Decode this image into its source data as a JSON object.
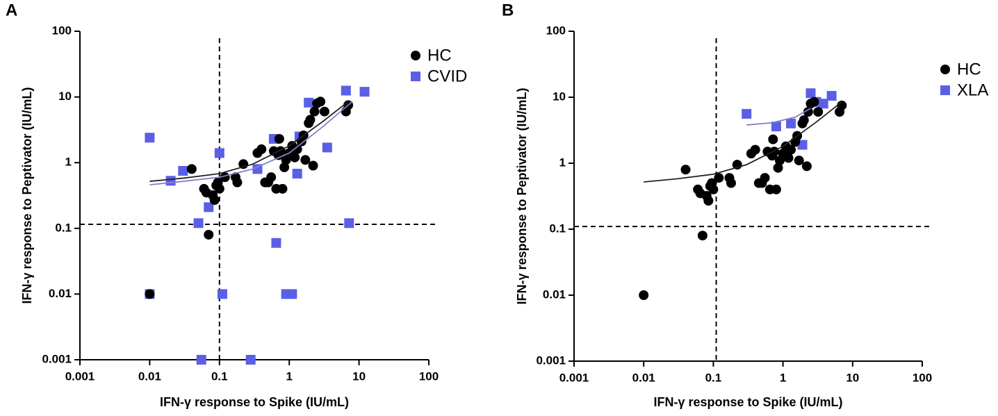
{
  "chart_data": [
    {
      "type": "scatter",
      "panel_label": "A",
      "x_label": "IFN-γ response to Spike (IU/mL)",
      "y_label": "IFN-γ response to Peptivator (IU/mL)",
      "log_x": true,
      "log_y": true,
      "xlim": [
        0.001,
        100
      ],
      "ylim": [
        0.001,
        100
      ],
      "xticks": [
        0.001,
        0.01,
        0.1,
        1,
        10,
        100
      ],
      "yticks": [
        0.001,
        0.01,
        0.1,
        1,
        10,
        100
      ],
      "ref_lines": {
        "x": 0.1,
        "y": 0.115
      },
      "legend": "upper right",
      "series": [
        {
          "name": "HC",
          "color": "#000000",
          "marker": "circle",
          "x": [
            0.01,
            0.04,
            0.06,
            0.065,
            0.07,
            0.08,
            0.085,
            0.09,
            0.095,
            0.1,
            0.12,
            0.17,
            0.18,
            0.22,
            0.35,
            0.4,
            0.45,
            0.5,
            0.55,
            0.6,
            0.65,
            0.7,
            0.72,
            0.75,
            0.8,
            0.85,
            0.9,
            1.0,
            1.1,
            1.2,
            1.3,
            1.5,
            1.6,
            1.7,
            1.9,
            2.0,
            2.2,
            2.3,
            2.5,
            2.8,
            3.2,
            6.5,
            7.0
          ],
          "values": [
            0.01,
            0.8,
            0.4,
            0.35,
            0.08,
            0.32,
            0.27,
            0.45,
            0.5,
            0.4,
            0.6,
            0.6,
            0.5,
            0.95,
            1.4,
            1.6,
            0.5,
            0.5,
            0.6,
            1.5,
            0.4,
            1.3,
            2.3,
            1.5,
            0.4,
            0.85,
            1.1,
            1.4,
            1.8,
            1.2,
            1.6,
            2.1,
            2.6,
            1.1,
            4.0,
            4.5,
            0.9,
            6.0,
            8.0,
            8.5,
            6.0,
            6.0,
            7.5
          ]
        },
        {
          "name": "CVID",
          "color": "#5b5fe6",
          "marker": "square",
          "x": [
            0.01,
            0.01,
            0.02,
            0.03,
            0.05,
            0.055,
            0.07,
            0.1,
            0.11,
            0.28,
            0.35,
            0.6,
            0.65,
            0.9,
            1.1,
            1.3,
            1.4,
            1.9,
            3.5,
            6.5,
            7.2,
            12
          ],
          "values": [
            2.4,
            0.01,
            0.53,
            0.75,
            0.12,
            0.001,
            0.21,
            1.4,
            0.01,
            0.001,
            0.8,
            2.3,
            0.06,
            0.01,
            0.01,
            0.68,
            2.5,
            8.2,
            1.7,
            12.5,
            0.12,
            12
          ]
        }
      ],
      "fits": [
        {
          "color": "#222222",
          "x": [
            0.01,
            0.03,
            0.1,
            0.3,
            1,
            3,
            7
          ],
          "values": [
            0.52,
            0.58,
            0.68,
            0.95,
            1.8,
            4.2,
            8.5
          ]
        },
        {
          "color": "#8080cc",
          "x": [
            0.01,
            0.03,
            0.1,
            0.3,
            1,
            3,
            8
          ],
          "values": [
            0.46,
            0.52,
            0.6,
            0.8,
            1.4,
            3.5,
            8.5
          ]
        }
      ]
    },
    {
      "type": "scatter",
      "panel_label": "B",
      "x_label": "IFN-γ response to Spike (IU/mL)",
      "y_label": "IFN-γ response to Peptivator (IU/mL)",
      "log_x": true,
      "log_y": true,
      "xlim": [
        0.001,
        100
      ],
      "ylim": [
        0.001,
        100
      ],
      "xticks": [
        0.001,
        0.01,
        0.1,
        1,
        10,
        100
      ],
      "yticks": [
        0.001,
        0.01,
        0.1,
        1,
        10,
        100
      ],
      "ref_lines": {
        "x": 0.11,
        "y": 0.11
      },
      "legend": "upper right",
      "series": [
        {
          "name": "HC",
          "color": "#000000",
          "marker": "circle",
          "x": [
            0.01,
            0.04,
            0.06,
            0.065,
            0.07,
            0.08,
            0.085,
            0.09,
            0.095,
            0.1,
            0.12,
            0.17,
            0.18,
            0.22,
            0.35,
            0.4,
            0.45,
            0.5,
            0.55,
            0.6,
            0.65,
            0.7,
            0.72,
            0.75,
            0.8,
            0.85,
            0.9,
            1.0,
            1.1,
            1.2,
            1.3,
            1.5,
            1.6,
            1.7,
            1.9,
            2.0,
            2.2,
            2.3,
            2.5,
            2.8,
            3.2,
            6.5,
            7.0
          ],
          "values": [
            0.01,
            0.8,
            0.4,
            0.35,
            0.08,
            0.32,
            0.27,
            0.45,
            0.5,
            0.4,
            0.6,
            0.6,
            0.5,
            0.95,
            1.4,
            1.6,
            0.5,
            0.5,
            0.6,
            1.5,
            0.4,
            1.3,
            2.3,
            1.5,
            0.4,
            0.85,
            1.1,
            1.4,
            1.8,
            1.2,
            1.6,
            2.1,
            2.6,
            1.1,
            4.0,
            4.5,
            0.9,
            6.0,
            8.0,
            8.5,
            6.0,
            6.0,
            7.5
          ]
        },
        {
          "name": "XLA",
          "color": "#5b5fe6",
          "marker": "square",
          "x": [
            0.3,
            0.8,
            1.3,
            1.9,
            2.5,
            3.0,
            3.8,
            5.0
          ],
          "values": [
            5.6,
            3.6,
            4.0,
            1.9,
            11.5,
            8.5,
            8.0,
            10.5
          ]
        }
      ],
      "fits": [
        {
          "color": "#222222",
          "x": [
            0.01,
            0.03,
            0.1,
            0.3,
            1,
            3,
            7
          ],
          "values": [
            0.52,
            0.58,
            0.68,
            0.95,
            1.8,
            4.2,
            8.5
          ]
        },
        {
          "color": "#8080cc",
          "x": [
            0.3,
            0.7,
            1.5,
            2.5
          ],
          "values": [
            3.8,
            4.1,
            5.0,
            6.8
          ]
        }
      ]
    }
  ]
}
